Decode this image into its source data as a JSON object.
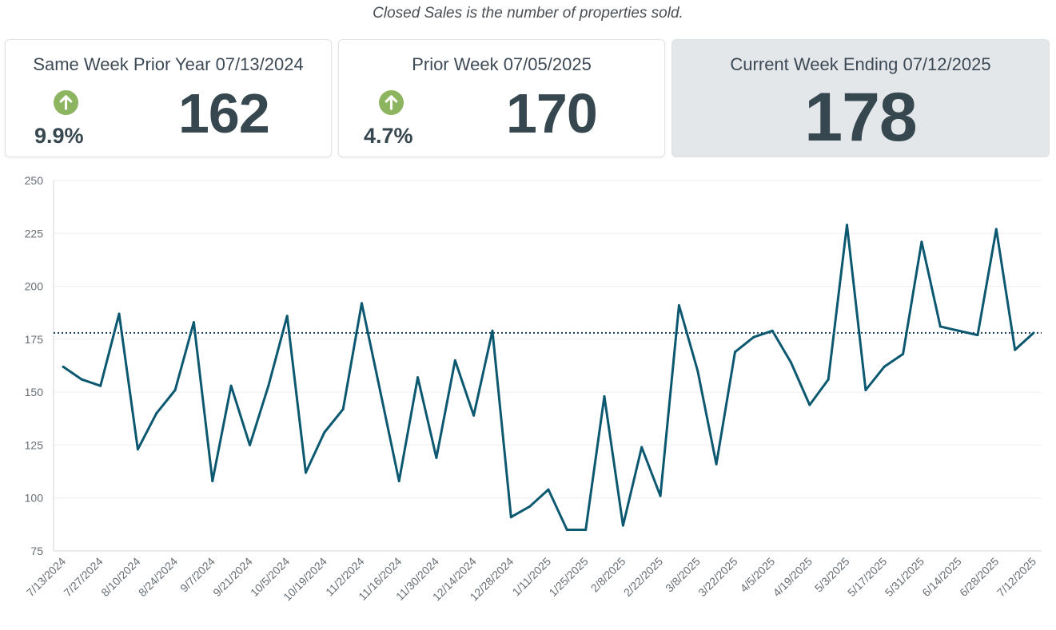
{
  "subtitle": "Closed Sales is the number of properties sold.",
  "cards": {
    "prior_year": {
      "title": "Same Week Prior Year 07/13/2024",
      "value": "162",
      "change": "9.9%",
      "arrow": "up-arrow-icon"
    },
    "prior_week": {
      "title": "Prior Week 07/05/2025",
      "value": "170",
      "change": "4.7%",
      "arrow": "up-arrow-icon"
    },
    "current": {
      "title": "Current Week Ending 07/12/2025",
      "value": "178"
    }
  },
  "colors": {
    "line": "#0b5870",
    "reference": "#123a52",
    "arrow": "#8db45f",
    "current_bg": "#e3e7ea"
  },
  "chart_data": {
    "type": "line",
    "title": "",
    "xlabel": "",
    "ylabel": "",
    "ylim": [
      75,
      250
    ],
    "yticks": [
      75,
      100,
      125,
      150,
      175,
      200,
      225,
      250
    ],
    "grid": true,
    "x_tick_labels": [
      "7/13/2024",
      "7/27/2024",
      "8/10/2024",
      "8/24/2024",
      "9/7/2024",
      "9/21/2024",
      "10/5/2024",
      "10/19/2024",
      "11/2/2024",
      "11/16/2024",
      "11/30/2024",
      "12/14/2024",
      "12/28/2024",
      "1/11/2025",
      "1/25/2025",
      "2/8/2025",
      "2/22/2025",
      "3/8/2025",
      "3/22/2025",
      "4/5/2025",
      "4/19/2025",
      "5/3/2025",
      "5/17/2025",
      "5/31/2025",
      "6/14/2025",
      "6/28/2025",
      "7/12/2025"
    ],
    "reference_line": {
      "value": 178,
      "style": "dotted"
    },
    "series": [
      {
        "values": [
          162,
          156,
          153,
          187,
          123,
          140,
          151,
          183,
          108,
          153,
          125,
          153,
          186,
          112,
          131,
          142,
          192,
          150,
          108,
          157,
          119,
          165,
          139,
          179,
          91,
          96,
          104,
          85,
          85,
          148,
          87,
          124,
          101,
          191,
          160,
          116,
          169,
          176,
          179,
          164,
          144,
          156,
          229,
          151,
          162,
          168,
          221,
          181,
          179,
          177,
          227,
          170,
          178
        ]
      }
    ]
  }
}
